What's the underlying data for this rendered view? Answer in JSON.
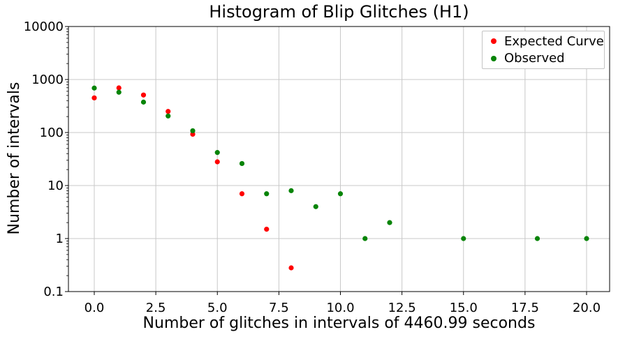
{
  "chart_data": {
    "type": "scatter",
    "title": "Histogram of Blip Glitches (H1)",
    "xlabel": "Number of glitches in intervals of 4460.99 seconds",
    "ylabel": "Number of intervals",
    "x_scale": "linear",
    "y_scale": "log",
    "xlim": [
      -1,
      21
    ],
    "ylim": [
      0.1,
      10000
    ],
    "grid": true,
    "x_ticks": [
      0,
      2.5,
      5,
      7.5,
      10,
      12.5,
      15,
      17.5,
      20
    ],
    "x_tick_labels": [
      "0.0",
      "2.5",
      "5.0",
      "7.5",
      "10.0",
      "12.5",
      "15.0",
      "17.5",
      "20.0"
    ],
    "y_ticks": [
      10000,
      1000,
      100,
      10,
      1,
      0.1
    ],
    "y_tick_labels": [
      "10000",
      "1000",
      "100",
      "10",
      "1",
      "0.1"
    ],
    "legend": {
      "position": "upper-right"
    },
    "colors": {
      "grid": "#c8c8c8",
      "spine": "#000000",
      "background": "#ffffff"
    },
    "series": [
      {
        "name": "Expected Curve",
        "color": "#ff0000",
        "x": [
          0,
          1,
          2,
          3,
          4,
          5,
          6,
          7,
          8
        ],
        "y": [
          450,
          695,
          510,
          250,
          93,
          28,
          7,
          1.5,
          0.28
        ]
      },
      {
        "name": "Observed",
        "color": "#078407",
        "x": [
          0,
          1,
          2,
          3,
          4,
          5,
          6,
          7,
          8,
          9,
          10,
          11,
          12,
          15,
          18,
          20
        ],
        "y": [
          690,
          575,
          375,
          205,
          108,
          42,
          26,
          7,
          8,
          4,
          7,
          1,
          2,
          1,
          1,
          1
        ]
      }
    ]
  }
}
